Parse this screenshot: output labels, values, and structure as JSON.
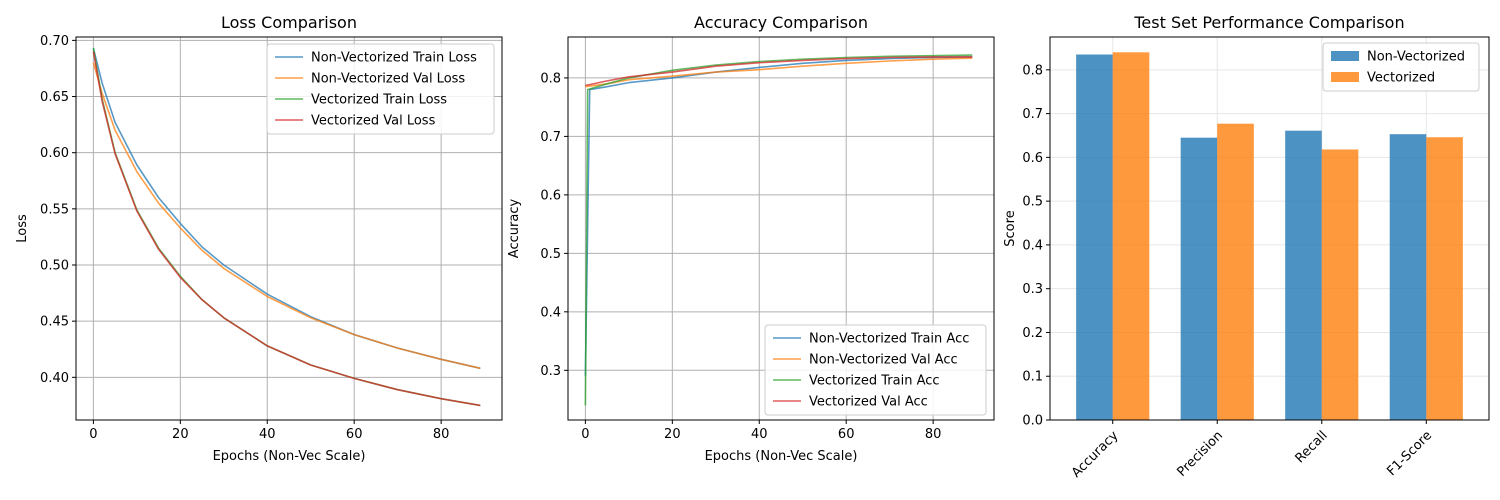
{
  "colors": {
    "blue": "#1f77b4",
    "orange": "#ff7f0e",
    "green": "#2ca02c",
    "red": "#d62728"
  },
  "chart_data": [
    {
      "type": "line",
      "title": "Loss Comparison",
      "xlabel": "Epochs (Non-Vec Scale)",
      "ylabel": "Loss",
      "xlim": [
        -4,
        94
      ],
      "ylim": [
        0.362,
        0.703
      ],
      "xticks": [
        0,
        20,
        40,
        60,
        80
      ],
      "xtick_labels": [
        "0",
        "20",
        "40",
        "60",
        "80"
      ],
      "yticks": [
        0.4,
        0.45,
        0.5,
        0.55,
        0.6,
        0.65,
        0.7
      ],
      "ytick_labels": [
        "0.40",
        "0.45",
        "0.50",
        "0.55",
        "0.60",
        "0.65",
        "0.70"
      ],
      "grid": true,
      "legend": "top-right",
      "series": [
        {
          "name": "Non-Vectorized Train Loss",
          "color": "#1f77b4",
          "x": [
            0,
            2,
            5,
            10,
            15,
            20,
            25,
            30,
            40,
            50,
            60,
            70,
            80,
            89
          ],
          "values": [
            0.693,
            0.662,
            0.627,
            0.589,
            0.56,
            0.537,
            0.516,
            0.5,
            0.474,
            0.454,
            0.438,
            0.426,
            0.416,
            0.408
          ]
        },
        {
          "name": "Non-Vectorized Val Loss",
          "color": "#ff7f0e",
          "x": [
            0,
            2,
            5,
            10,
            15,
            20,
            25,
            30,
            40,
            50,
            60,
            70,
            80,
            89
          ],
          "values": [
            0.68,
            0.653,
            0.62,
            0.583,
            0.555,
            0.533,
            0.513,
            0.497,
            0.472,
            0.453,
            0.438,
            0.426,
            0.416,
            0.408
          ]
        },
        {
          "name": "Vectorized Train Loss",
          "color": "#2ca02c",
          "x": [
            0,
            2,
            5,
            10,
            15,
            20,
            25,
            30,
            40,
            50,
            60,
            70,
            80,
            89
          ],
          "values": [
            0.693,
            0.648,
            0.6,
            0.549,
            0.515,
            0.49,
            0.469,
            0.453,
            0.428,
            0.411,
            0.399,
            0.389,
            0.381,
            0.375
          ]
        },
        {
          "name": "Vectorized Val Loss",
          "color": "#d62728",
          "x": [
            0,
            2,
            5,
            10,
            15,
            20,
            25,
            30,
            40,
            50,
            60,
            70,
            80,
            89
          ],
          "values": [
            0.69,
            0.646,
            0.599,
            0.548,
            0.514,
            0.489,
            0.469,
            0.453,
            0.428,
            0.411,
            0.399,
            0.389,
            0.381,
            0.375
          ]
        }
      ]
    },
    {
      "type": "line",
      "title": "Accuracy Comparison",
      "xlabel": "Epochs (Non-Vec Scale)",
      "ylabel": "Accuracy",
      "xlim": [
        -4,
        94
      ],
      "ylim": [
        0.215,
        0.87
      ],
      "xticks": [
        0,
        20,
        40,
        60,
        80
      ],
      "xtick_labels": [
        "0",
        "20",
        "40",
        "60",
        "80"
      ],
      "yticks": [
        0.3,
        0.4,
        0.5,
        0.6,
        0.7,
        0.8
      ],
      "ytick_labels": [
        "0.3",
        "0.4",
        "0.5",
        "0.6",
        "0.7",
        "0.8"
      ],
      "grid": true,
      "legend": "bottom-right",
      "series": [
        {
          "name": "Non-Vectorized Train Acc",
          "color": "#1f77b4",
          "x": [
            0,
            1,
            5,
            10,
            20,
            30,
            40,
            50,
            60,
            70,
            80,
            89
          ],
          "values": [
            0.29,
            0.78,
            0.785,
            0.792,
            0.8,
            0.81,
            0.818,
            0.825,
            0.83,
            0.833,
            0.835,
            0.836
          ]
        },
        {
          "name": "Non-Vectorized Val Acc",
          "color": "#ff7f0e",
          "x": [
            0,
            1,
            5,
            10,
            20,
            30,
            40,
            50,
            60,
            70,
            80,
            89
          ],
          "values": [
            0.785,
            0.786,
            0.79,
            0.797,
            0.803,
            0.81,
            0.814,
            0.82,
            0.825,
            0.829,
            0.832,
            0.834
          ]
        },
        {
          "name": "Vectorized Train Acc",
          "color": "#2ca02c",
          "x": [
            0,
            0.5,
            5,
            10,
            20,
            30,
            40,
            50,
            60,
            70,
            80,
            89
          ],
          "values": [
            0.24,
            0.78,
            0.79,
            0.8,
            0.813,
            0.822,
            0.828,
            0.832,
            0.835,
            0.837,
            0.838,
            0.839
          ]
        },
        {
          "name": "Vectorized Val Acc",
          "color": "#d62728",
          "x": [
            0,
            5,
            10,
            20,
            30,
            40,
            50,
            60,
            70,
            80,
            89
          ],
          "values": [
            0.787,
            0.795,
            0.802,
            0.81,
            0.82,
            0.826,
            0.83,
            0.833,
            0.835,
            0.836,
            0.836
          ]
        }
      ]
    },
    {
      "type": "bar",
      "title": "Test Set Performance Comparison",
      "xlabel": "",
      "ylabel": "Score",
      "ylim": [
        0,
        0.875
      ],
      "yticks": [
        0.0,
        0.1,
        0.2,
        0.3,
        0.4,
        0.5,
        0.6,
        0.7,
        0.8
      ],
      "ytick_labels": [
        "0.0",
        "0.1",
        "0.2",
        "0.3",
        "0.4",
        "0.5",
        "0.6",
        "0.7",
        "0.8"
      ],
      "categories": [
        "Accuracy",
        "Precision",
        "Recall",
        "F1-Score"
      ],
      "grid": true,
      "legend": "top-right",
      "series": [
        {
          "name": "Non-Vectorized",
          "color": "#1f77b4",
          "values": [
            0.835,
            0.645,
            0.661,
            0.653
          ]
        },
        {
          "name": "Vectorized",
          "color": "#ff7f0e",
          "values": [
            0.84,
            0.677,
            0.618,
            0.646
          ]
        }
      ]
    }
  ]
}
